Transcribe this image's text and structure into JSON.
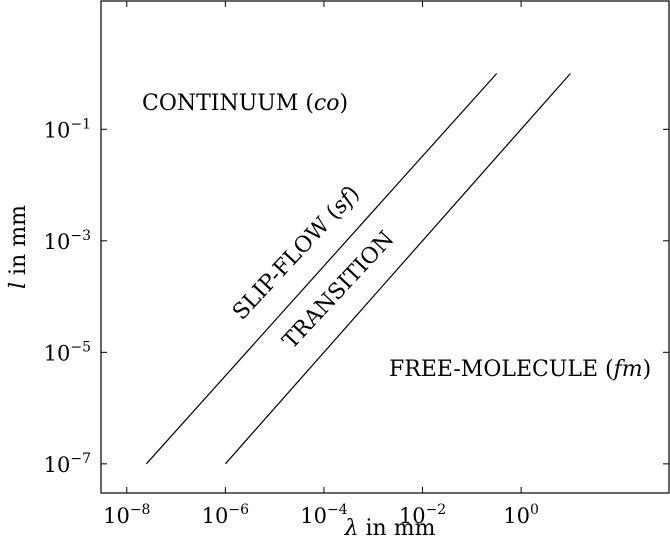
{
  "chart_data": {
    "type": "line",
    "x_scale": "log",
    "y_scale": "log",
    "xlim": [
      3e-09,
      1000
    ],
    "ylim": [
      3e-08,
      20
    ],
    "xlabel": {
      "symbol": "λ",
      "text": " in mm"
    },
    "ylabel": {
      "symbol": "l",
      "text": " in mm"
    },
    "x_ticks": [
      {
        "base": "10",
        "exp": "−8",
        "value": 1e-08
      },
      {
        "base": "10",
        "exp": "−6",
        "value": 1e-06
      },
      {
        "base": "10",
        "exp": "−4",
        "value": 0.0001
      },
      {
        "base": "10",
        "exp": "−2",
        "value": 0.01
      },
      {
        "base": "10",
        "exp": "0",
        "value": 1
      }
    ],
    "y_ticks": [
      {
        "base": "10",
        "exp": "−7",
        "value": 1e-07
      },
      {
        "base": "10",
        "exp": "−5",
        "value": 1e-05
      },
      {
        "base": "10",
        "exp": "−3",
        "value": 0.001
      },
      {
        "base": "10",
        "exp": "−1",
        "value": 0.1
      }
    ],
    "series": [
      {
        "x": [
          2.5e-08,
          0.32
        ],
        "y": [
          1e-07,
          1.0
        ]
      },
      {
        "x": [
          1e-06,
          10
        ],
        "y": [
          1e-07,
          1.0
        ]
      }
    ],
    "regions": {
      "continuum": {
        "text": "CONTINUUM (",
        "ital": "co",
        "close": ")"
      },
      "slip_flow": {
        "text": "SLIP-FLOW (",
        "ital": "sf",
        "close": ")"
      },
      "transition": {
        "text": "TRANSITION"
      },
      "free_molecule": {
        "text": "FREE-MOLECULE (",
        "ital": "fm",
        "close": ")"
      }
    },
    "grid": false,
    "line_color": "#000000"
  }
}
